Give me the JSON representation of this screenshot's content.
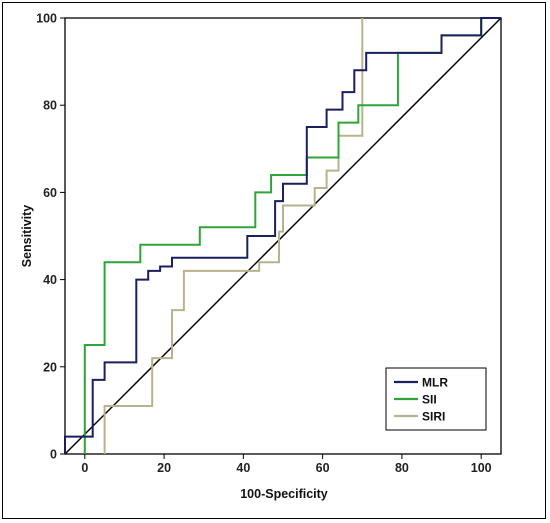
{
  "chart_data": {
    "type": "line",
    "title": "",
    "xlabel": "100-Specificity",
    "ylabel": "Sensitivity",
    "xlim": [
      -5,
      105
    ],
    "ylim": [
      0,
      100
    ],
    "x_ticks": [
      "0",
      "20",
      "40",
      "60",
      "80",
      "100"
    ],
    "y_ticks": [
      "0",
      "20",
      "40",
      "60",
      "80",
      "100"
    ],
    "grid": false,
    "legend_position": "bottom-right",
    "reference_line": {
      "from": [
        -5,
        0
      ],
      "to": [
        105,
        100
      ]
    },
    "series": [
      {
        "name": "MLR",
        "color": "#1b1f5e",
        "points": [
          [
            -5,
            0
          ],
          [
            -5,
            4
          ],
          [
            0,
            4
          ],
          [
            0,
            4
          ],
          [
            2,
            4
          ],
          [
            2,
            17
          ],
          [
            5,
            17
          ],
          [
            5,
            21
          ],
          [
            13,
            21
          ],
          [
            13,
            40
          ],
          [
            16,
            40
          ],
          [
            16,
            42
          ],
          [
            19,
            42
          ],
          [
            19,
            43
          ],
          [
            22,
            43
          ],
          [
            22,
            45
          ],
          [
            41,
            45
          ],
          [
            41,
            50
          ],
          [
            48,
            50
          ],
          [
            48,
            58
          ],
          [
            50,
            58
          ],
          [
            50,
            62
          ],
          [
            56,
            62
          ],
          [
            56,
            75
          ],
          [
            61,
            75
          ],
          [
            61,
            79
          ],
          [
            65,
            79
          ],
          [
            65,
            83
          ],
          [
            68,
            83
          ],
          [
            68,
            88
          ],
          [
            71,
            88
          ],
          [
            71,
            92
          ],
          [
            90,
            92
          ],
          [
            90,
            96
          ],
          [
            100,
            96
          ],
          [
            100,
            100
          ],
          [
            105,
            100
          ]
        ]
      },
      {
        "name": "SII",
        "color": "#2ea43a",
        "points": [
          [
            0,
            0
          ],
          [
            0,
            25
          ],
          [
            5,
            25
          ],
          [
            5,
            44
          ],
          [
            14,
            44
          ],
          [
            14,
            48
          ],
          [
            29,
            48
          ],
          [
            29,
            52
          ],
          [
            43,
            52
          ],
          [
            43,
            60
          ],
          [
            47,
            60
          ],
          [
            47,
            64
          ],
          [
            56,
            64
          ],
          [
            56,
            68
          ],
          [
            64,
            68
          ],
          [
            64,
            76
          ],
          [
            69,
            76
          ],
          [
            69,
            80
          ],
          [
            79,
            80
          ],
          [
            79,
            92
          ],
          [
            90,
            92
          ],
          [
            90,
            96
          ],
          [
            100,
            96
          ],
          [
            100,
            100
          ]
        ]
      },
      {
        "name": "SIRI",
        "color": "#b8b28e",
        "points": [
          [
            5,
            0
          ],
          [
            5,
            11
          ],
          [
            17,
            11
          ],
          [
            17,
            22
          ],
          [
            22,
            22
          ],
          [
            22,
            33
          ],
          [
            25,
            33
          ],
          [
            25,
            42
          ],
          [
            44,
            42
          ],
          [
            44,
            44
          ],
          [
            49,
            44
          ],
          [
            49,
            51
          ],
          [
            50,
            51
          ],
          [
            50,
            57
          ],
          [
            58,
            57
          ],
          [
            58,
            61
          ],
          [
            61,
            61
          ],
          [
            61,
            65
          ],
          [
            64,
            65
          ],
          [
            64,
            73
          ],
          [
            70,
            73
          ],
          [
            70,
            100
          ]
        ]
      }
    ]
  }
}
